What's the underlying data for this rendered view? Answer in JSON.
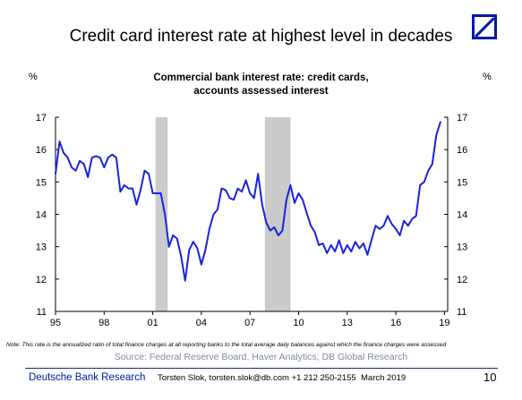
{
  "page": {
    "title": "Credit card interest rate at highest level in decades",
    "note": "Note: This rate is the annualized ratio of total finance charges at all reporting banks to the total average daily balances against which the finance charges were assessed",
    "source": "Source: Federal Reserve Board, Haver Analytics, DB Global Research",
    "footer": {
      "brand": "Deutsche Bank Research",
      "author": "Torsten Slok, torsten.slok@db.com +1 212 250-2155",
      "date": "March 2019",
      "page_number": "10"
    },
    "logo_icon": "deutsche-bank-logo",
    "accent_color": "#0018a8"
  },
  "chart_data": {
    "type": "line",
    "title_line1": "Commercial bank interest rate: credit cards,",
    "title_line2": "accounts assessed interest",
    "ylabel_left": "%",
    "ylabel_right": "%",
    "ylim": [
      11,
      17
    ],
    "xlim": [
      1995,
      2019.2
    ],
    "y_ticks": [
      "11",
      "12",
      "13",
      "14",
      "15",
      "16",
      "17"
    ],
    "x_ticks": [
      {
        "value": 1995,
        "label": "95"
      },
      {
        "value": 1998,
        "label": "98"
      },
      {
        "value": 2001,
        "label": "01"
      },
      {
        "value": 2004,
        "label": "04"
      },
      {
        "value": 2007,
        "label": "07"
      },
      {
        "value": 2010,
        "label": "10"
      },
      {
        "value": 2013,
        "label": "13"
      },
      {
        "value": 2016,
        "label": "16"
      },
      {
        "value": 2019,
        "label": "19"
      }
    ],
    "recessions": [
      {
        "start": 2001.17,
        "end": 2001.92
      },
      {
        "start": 2007.92,
        "end": 2009.5
      }
    ],
    "line_color": "#1a23e0",
    "recession_color": "#cbcbcb",
    "grid": false,
    "series": [
      {
        "x": [
          1995.0,
          1995.25,
          1995.5,
          1995.75,
          1996.0,
          1996.25,
          1996.5,
          1996.75,
          1997.0,
          1997.25,
          1997.5,
          1997.75,
          1998.0,
          1998.25,
          1998.5,
          1998.75,
          1999.0,
          1999.25,
          1999.5,
          1999.75,
          2000.0,
          2000.25,
          2000.5,
          2000.75,
          2001.0,
          2001.25,
          2001.5,
          2001.75,
          2002.0,
          2002.25,
          2002.5,
          2002.75,
          2003.0,
          2003.25,
          2003.5,
          2003.75,
          2004.0,
          2004.25,
          2004.5,
          2004.75,
          2005.0,
          2005.25,
          2005.5,
          2005.75,
          2006.0,
          2006.25,
          2006.5,
          2006.75,
          2007.0,
          2007.25,
          2007.5,
          2007.75,
          2008.0,
          2008.25,
          2008.5,
          2008.75,
          2009.0,
          2009.25,
          2009.5,
          2009.75,
          2010.0,
          2010.25,
          2010.5,
          2010.75,
          2011.0,
          2011.25,
          2011.5,
          2011.75,
          2012.0,
          2012.25,
          2012.5,
          2012.75,
          2013.0,
          2013.25,
          2013.5,
          2013.75,
          2014.0,
          2014.25,
          2014.5,
          2014.75,
          2015.0,
          2015.25,
          2015.5,
          2015.75,
          2016.0,
          2016.25,
          2016.5,
          2016.75,
          2017.0,
          2017.25,
          2017.5,
          2017.75,
          2018.0,
          2018.25,
          2018.5,
          2018.75
        ],
        "values": [
          15.25,
          16.25,
          15.9,
          15.75,
          15.45,
          15.35,
          15.65,
          15.55,
          15.15,
          15.75,
          15.8,
          15.75,
          15.45,
          15.75,
          15.85,
          15.75,
          14.7,
          14.9,
          14.8,
          14.8,
          14.3,
          14.75,
          15.35,
          15.25,
          14.65,
          14.65,
          14.65,
          14.0,
          13.0,
          13.35,
          13.25,
          12.7,
          11.95,
          12.9,
          13.15,
          12.95,
          12.45,
          12.9,
          13.55,
          14.0,
          14.15,
          14.8,
          14.75,
          14.5,
          14.45,
          14.8,
          14.7,
          15.05,
          14.65,
          14.5,
          15.25,
          14.3,
          13.75,
          13.5,
          13.6,
          13.35,
          13.5,
          14.45,
          14.9,
          14.35,
          14.65,
          14.45,
          14.05,
          13.65,
          13.45,
          13.05,
          13.1,
          12.8,
          13.05,
          12.85,
          13.2,
          12.8,
          13.05,
          12.85,
          13.15,
          12.95,
          13.1,
          12.75,
          13.2,
          13.65,
          13.55,
          13.65,
          13.95,
          13.7,
          13.55,
          13.35,
          13.8,
          13.65,
          13.85,
          13.95,
          14.9,
          15.0,
          15.35,
          15.55,
          16.45,
          16.85
        ]
      }
    ]
  }
}
